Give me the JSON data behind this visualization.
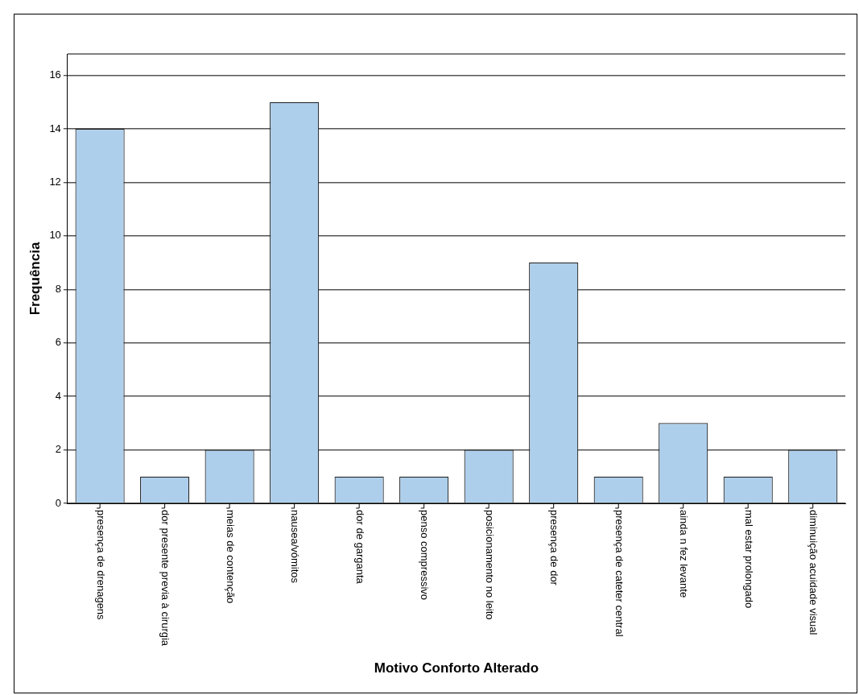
{
  "chart_data": {
    "type": "bar",
    "xlabel": "Motivo Conforto Alterado",
    "ylabel": "Frequência",
    "categories": [
      "presença de drenagens",
      "dor presente previa à cirurgia",
      "meias de contenção",
      "nausea/vómitos",
      "dor de garganta",
      "penso compressivo",
      "posicionamento no leito",
      "presença de dor",
      "presença de cateter central",
      "ainda n fez levante",
      "mal estar prolongado",
      "diminuição acuidade visual"
    ],
    "values": [
      14,
      1,
      2,
      15,
      1,
      1,
      2,
      9,
      1,
      3,
      1,
      2
    ],
    "color": "#aecfec",
    "ylim": [
      0,
      16.8
    ],
    "yticks": [
      0,
      2,
      4,
      6,
      8,
      10,
      12,
      14,
      16
    ],
    "grid": "y",
    "legend": false
  }
}
